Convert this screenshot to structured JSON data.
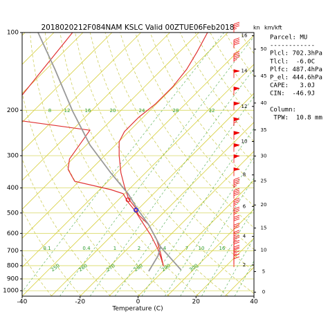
{
  "chart_data": {
    "type": "skew-t",
    "title": "2018020212F084NAM KSLC Valid 00ZTUE06Feb2018",
    "wind_unit": "kn",
    "height_unit": "km/kft",
    "xlabel": "Temperature (C)",
    "xlim": [
      -40,
      40
    ],
    "xticks": [
      -40,
      -20,
      0,
      20,
      40
    ],
    "ylim": [
      1050,
      100
    ],
    "yticks": [
      100,
      200,
      300,
      400,
      500,
      600,
      700,
      800,
      900,
      1000
    ],
    "log_y": true,
    "grid": true,
    "series": [
      {
        "color": "#e03030",
        "pressure": [
          805,
          712,
          629,
          556,
          507,
          476,
          442,
          396,
          350,
          300,
          265,
          242,
          213,
          189,
          162,
          139,
          119,
          100
        ],
        "values": [
          -1.5,
          -7.3,
          -13.5,
          -20.9,
          -28.1,
          -31.6,
          -36.7,
          -42.4,
          -48.4,
          -55.0,
          -59.8,
          -61.5,
          -61.5,
          -60.3,
          -60.3,
          -61.5,
          -63.9,
          -67.0
        ]
      },
      {
        "color": "#e03030",
        "pressure": [
          791,
          690,
          610,
          539,
          491,
          454,
          421,
          406,
          377,
          339,
          309,
          239,
          220,
          null,
          177,
          100
        ],
        "values": [
          -2.3,
          -9.4,
          -16.6,
          -24.5,
          -30.4,
          -35.9,
          -40.5,
          -46.2,
          -61.5,
          -67.9,
          -71.0,
          -73.9,
          -100.4,
          null,
          -109.3,
          -113.6
        ]
      },
      {
        "color": "#999999",
        "pressure": [
          831,
          677,
          556,
          482,
          421,
          350,
          273,
          201,
          139,
          100
        ],
        "values": [
          5.8,
          -9.2,
          -20.9,
          -30.4,
          -38.8,
          -51.9,
          -68.7,
          -86.6,
          -106.9,
          -125.5
        ]
      },
      {
        "color": "#999999",
        "pressure": [
          841,
          734,
          677
        ],
        "values": [
          -4.9,
          -7.0,
          -9.2
        ]
      }
    ],
    "markers": [
      {
        "color": "#e03030",
        "pressure": 444.6,
        "temperature": -36.7
      },
      {
        "color": "#2020e0",
        "pressure": 487.4,
        "temperature": -30.4
      }
    ],
    "km_ticks": [
      2,
      4,
      6,
      8,
      10,
      12,
      14,
      16
    ],
    "kft_ticks": [
      0,
      5,
      10,
      15,
      20,
      25,
      30,
      35,
      40,
      45,
      50
    ],
    "mixing_ratio_labels_upper": [
      8,
      12,
      16,
      20,
      24,
      28,
      32
    ],
    "mixing_ratio_labels_lower": [
      0.1,
      0.4,
      1,
      2,
      4,
      7,
      10,
      16
    ],
    "adiabat_labels": [
      250,
      260,
      270,
      280,
      290,
      300
    ],
    "wind": {
      "color": "#ee0000",
      "pressure": [
        810,
        790,
        770,
        750,
        730,
        700,
        670,
        640,
        600,
        560,
        520,
        480,
        440,
        400,
        360,
        320,
        290,
        260,
        230,
        200,
        175,
        150,
        130,
        115,
        100
      ],
      "speed": [
        10,
        10,
        15,
        15,
        20,
        20,
        25,
        25,
        30,
        30,
        35,
        35,
        40,
        45,
        50,
        55,
        60,
        60,
        65,
        60,
        55,
        50,
        45,
        40,
        35
      ]
    },
    "info_panel": [
      "Parcel: MU",
      "------------",
      "Plcl: 702.3hPa",
      "Tlcl:  -6.0C",
      "Plfc: 487.4hPa",
      "P_el: 444.6hPa",
      "CAPE:   3.0J",
      "CIN:  -46.9J",
      "",
      "Column:",
      " TPW:  10.8 mm"
    ]
  }
}
